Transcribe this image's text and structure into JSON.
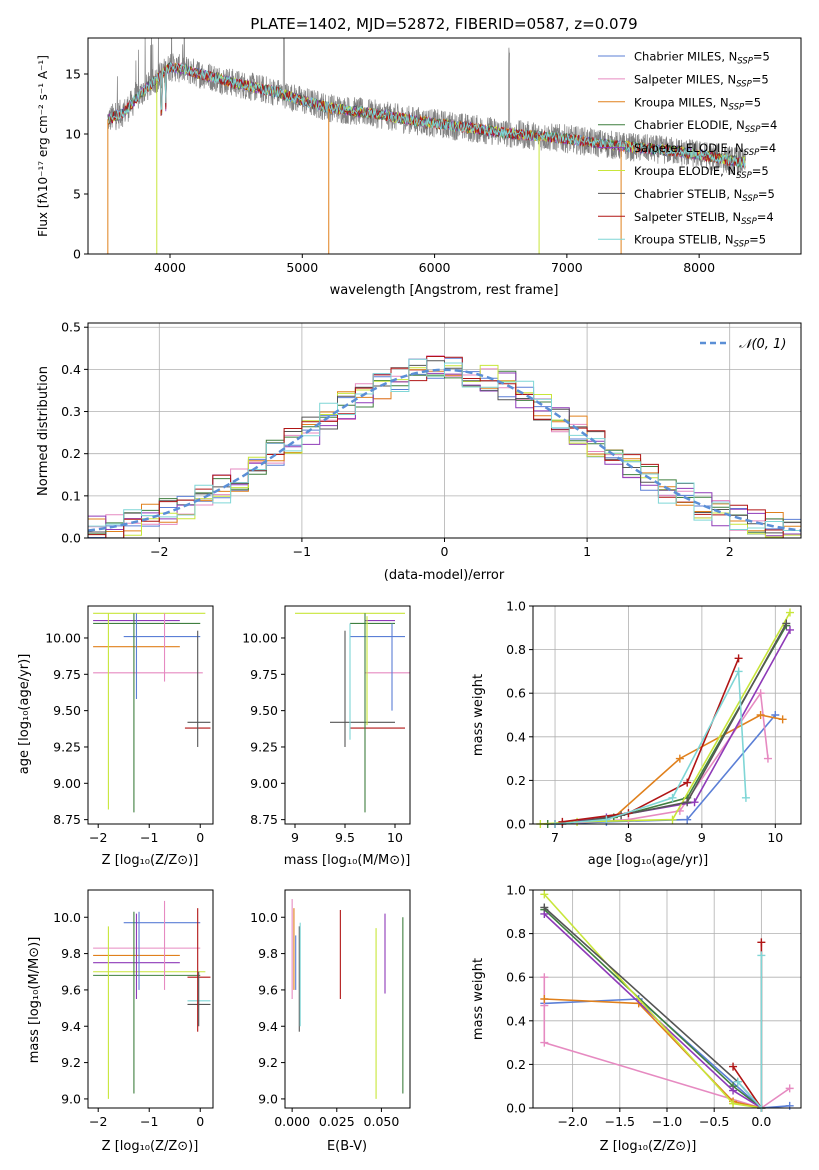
{
  "chart_data": [
    {
      "id": "spectrum",
      "type": "line",
      "title": "PLATE=1402, MJD=52872, FIBERID=0587, z=0.079",
      "xlabel": "wavelength [Angstrom, rest frame]",
      "ylabel": "Flux [fλ10⁻¹⁷ erg cm⁻² s⁻¹ A⁻¹]",
      "xlim": [
        3380,
        8770
      ],
      "ylim": [
        0,
        18
      ],
      "xticks": [
        4000,
        5000,
        6000,
        7000,
        8000
      ],
      "yticks": [
        0,
        5,
        10,
        15
      ],
      "legend_position": "upper-right",
      "spectrum_keypoints": {
        "x": [
          3530,
          3650,
          3800,
          3900,
          4000,
          4100,
          4300,
          4500,
          4800,
          5000,
          5200,
          5400,
          5600,
          5800,
          6000,
          6200,
          6400,
          6600,
          6800,
          7000,
          7200,
          7400,
          7600,
          7800,
          8000,
          8200,
          8350
        ],
        "y": [
          11.2,
          11.8,
          13.6,
          14.6,
          15.6,
          15.4,
          14.8,
          14.2,
          13.5,
          12.8,
          12.2,
          11.9,
          11.6,
          11.2,
          10.9,
          10.6,
          10.3,
          10.0,
          9.8,
          9.6,
          9.3,
          9.0,
          8.8,
          8.6,
          8.3,
          7.9,
          7.6
        ]
      },
      "series": [
        {
          "name": "Chabrier MILES, N",
          "sub": "SSP",
          "suffix": "=5",
          "color": "#5b7fd6"
        },
        {
          "name": "Salpeter MILES, N",
          "sub": "SSP",
          "suffix": "=5",
          "color": "#e68ac1"
        },
        {
          "name": "Kroupa MILES, N",
          "sub": "SSP",
          "suffix": "=5",
          "color": "#e0801c"
        },
        {
          "name": "Chabrier ELODIE, N",
          "sub": "SSP",
          "suffix": "=4",
          "color": "#3f7f3f"
        },
        {
          "name": "Salpeter ELODIE, N",
          "sub": "SSP",
          "suffix": "=4",
          "color": "#8e3ab8"
        },
        {
          "name": "Kroupa ELODIE, N",
          "sub": "SSP",
          "suffix": "=5",
          "color": "#c8e63a"
        },
        {
          "name": "Chabrier STELIB, N",
          "sub": "SSP",
          "suffix": "=5",
          "color": "#555555"
        },
        {
          "name": "Salpeter STELIB, N",
          "sub": "SSP",
          "suffix": "=4",
          "color": "#b01515"
        },
        {
          "name": "Kroupa STELIB, N",
          "sub": "SSP",
          "suffix": "=5",
          "color": "#7fd6d6"
        }
      ]
    },
    {
      "id": "residuals",
      "type": "histogram",
      "xlabel": "(data-model)/error",
      "ylabel": "Normed distribution",
      "xlim": [
        -2.5,
        2.5
      ],
      "ylim": [
        0,
        0.51
      ],
      "xticks": [
        -2,
        -1,
        0,
        1,
        2
      ],
      "yticks": [
        0.0,
        0.1,
        0.2,
        0.3,
        0.4,
        0.5
      ],
      "grid": true,
      "bin_width": 0.125,
      "reference": {
        "label": "𝒩(0, 1)",
        "mean": 0,
        "sigma": 1,
        "color": "#5b8fd6"
      },
      "legend_position": "upper-right"
    },
    {
      "id": "age-vs-Z",
      "type": "errorbar",
      "xlabel": "Z [log₁₀(Z/Z⊙)]",
      "ylabel": "age  [log₁₀(age/yr)]",
      "xlim": [
        -2.2,
        0.25
      ],
      "ylim": [
        8.72,
        10.22
      ],
      "xticks": [
        -2,
        -1,
        0
      ],
      "yticks": [
        8.75,
        9.0,
        9.25,
        9.5,
        9.75,
        10.0
      ],
      "hlines": [
        {
          "y": 10.17,
          "x0": -2.1,
          "x1": 0.1,
          "color": "#c8e63a"
        },
        {
          "y": 10.12,
          "x0": -2.1,
          "x1": -0.4,
          "color": "#8e3ab8"
        },
        {
          "y": 10.1,
          "x0": -2.1,
          "x1": 0.0,
          "color": "#3f7f3f"
        },
        {
          "y": 10.01,
          "x0": -1.5,
          "x1": 0.0,
          "color": "#5b7fd6"
        },
        {
          "y": 9.94,
          "x0": -2.1,
          "x1": -0.4,
          "color": "#e0801c"
        },
        {
          "y": 9.76,
          "x0": -2.1,
          "x1": 0.05,
          "color": "#e68ac1"
        },
        {
          "y": 9.42,
          "x0": -0.25,
          "x1": 0.2,
          "color": "#555555"
        },
        {
          "y": 9.38,
          "x0": -0.3,
          "x1": 0.2,
          "color": "#b01515"
        }
      ],
      "vlines": [
        {
          "x": -1.8,
          "y0": 8.82,
          "y1": 10.17,
          "color": "#c8e63a"
        },
        {
          "x": -1.3,
          "y0": 8.8,
          "y1": 10.17,
          "color": "#3f7f3f"
        },
        {
          "x": -1.25,
          "y0": 9.58,
          "y1": 10.17,
          "color": "#5b7fd6"
        },
        {
          "x": -0.7,
          "y0": 9.7,
          "y1": 10.17,
          "color": "#e68ac1"
        },
        {
          "x": -0.05,
          "y0": 9.25,
          "y1": 10.05,
          "color": "#555555"
        }
      ]
    },
    {
      "id": "age-vs-mass",
      "type": "errorbar",
      "xlabel": "mass [log₁₀(M/M⊙)]",
      "ylabel": "",
      "xlim": [
        8.9,
        10.15
      ],
      "ylim": [
        8.72,
        10.22
      ],
      "xticks": [
        9.0,
        9.5,
        10.0
      ],
      "yticks": [
        8.75,
        9.0,
        9.25,
        9.5,
        9.75,
        10.0
      ],
      "hlines": [
        {
          "y": 10.17,
          "x0": 9.0,
          "x1": 10.1,
          "color": "#c8e63a"
        },
        {
          "y": 10.12,
          "x0": 9.7,
          "x1": 10.0,
          "color": "#8e3ab8"
        },
        {
          "y": 10.1,
          "x0": 9.55,
          "x1": 10.0,
          "color": "#3f7f3f"
        },
        {
          "y": 10.01,
          "x0": 9.55,
          "x1": 10.1,
          "color": "#5b7fd6"
        },
        {
          "y": 9.76,
          "x0": 9.7,
          "x1": 10.15,
          "color": "#e68ac1"
        },
        {
          "y": 9.42,
          "x0": 9.35,
          "x1": 10.0,
          "color": "#555555"
        },
        {
          "y": 9.38,
          "x0": 9.55,
          "x1": 10.1,
          "color": "#b01515"
        }
      ],
      "vlines": [
        {
          "x": 9.5,
          "y0": 9.25,
          "y1": 10.05,
          "color": "#555555"
        },
        {
          "x": 9.55,
          "y0": 9.3,
          "y1": 10.1,
          "color": "#7fd6d6"
        },
        {
          "x": 9.7,
          "y0": 8.8,
          "y1": 10.17,
          "color": "#3f7f3f"
        },
        {
          "x": 9.72,
          "y0": 9.4,
          "y1": 10.15,
          "color": "#c8e63a"
        },
        {
          "x": 9.97,
          "y0": 9.5,
          "y1": 10.1,
          "color": "#5b7fd6"
        }
      ]
    },
    {
      "id": "weight-vs-age",
      "type": "line",
      "xlabel": "age  [log₁₀(age/yr)]",
      "ylabel": "mass weight",
      "xlim": [
        6.7,
        10.35
      ],
      "ylim": [
        0,
        1.0
      ],
      "xticks": [
        7,
        8,
        9,
        10
      ],
      "yticks": [
        0.0,
        0.2,
        0.4,
        0.6,
        0.8,
        1.0
      ],
      "grid": true,
      "series": [
        {
          "color": "#5b7fd6",
          "x": [
            7.0,
            7.7,
            8.8,
            10.0
          ],
          "y": [
            0.0,
            0.01,
            0.02,
            0.5
          ]
        },
        {
          "color": "#e68ac1",
          "x": [
            7.0,
            8.0,
            8.7,
            9.8,
            9.9
          ],
          "y": [
            0.0,
            0.02,
            0.06,
            0.6,
            0.3
          ]
        },
        {
          "color": "#e0801c",
          "x": [
            7.0,
            7.8,
            8.7,
            9.8,
            10.1
          ],
          "y": [
            0.0,
            0.03,
            0.3,
            0.5,
            0.48
          ]
        },
        {
          "color": "#3f7f3f",
          "x": [
            6.9,
            7.8,
            8.8,
            10.15
          ],
          "y": [
            0.0,
            0.03,
            0.12,
            0.91
          ]
        },
        {
          "color": "#8e3ab8",
          "x": [
            7.0,
            7.7,
            8.9,
            10.2
          ],
          "y": [
            0.0,
            0.03,
            0.1,
            0.89
          ]
        },
        {
          "color": "#c8e63a",
          "x": [
            6.8,
            7.3,
            8.6,
            10.2
          ],
          "y": [
            0.0,
            0.01,
            0.02,
            0.97
          ]
        },
        {
          "color": "#555555",
          "x": [
            7.1,
            7.9,
            8.8,
            10.15
          ],
          "y": [
            0.0,
            0.04,
            0.1,
            0.92
          ]
        },
        {
          "color": "#b01515",
          "x": [
            7.1,
            8.0,
            8.8,
            9.5
          ],
          "y": [
            0.01,
            0.05,
            0.19,
            0.76
          ]
        },
        {
          "color": "#7fd6d6",
          "x": [
            7.0,
            7.7,
            8.6,
            9.5,
            9.6
          ],
          "y": [
            0.0,
            0.02,
            0.12,
            0.7,
            0.12
          ]
        }
      ]
    },
    {
      "id": "mass-vs-Z",
      "type": "errorbar",
      "xlabel": "Z [log₁₀(Z/Z⊙)]",
      "ylabel": "mass [log₁₀(M/M⊙)]",
      "xlim": [
        -2.2,
        0.25
      ],
      "ylim": [
        8.95,
        10.15
      ],
      "xticks": [
        -2,
        -1,
        0
      ],
      "yticks": [
        9.0,
        9.2,
        9.4,
        9.6,
        9.8,
        10.0
      ],
      "hlines": [
        {
          "y": 9.97,
          "x0": -1.5,
          "x1": 0.0,
          "color": "#5b7fd6"
        },
        {
          "y": 9.83,
          "x0": -2.1,
          "x1": 0.0,
          "color": "#e68ac1"
        },
        {
          "y": 9.79,
          "x0": -2.1,
          "x1": -0.4,
          "color": "#e0801c"
        },
        {
          "y": 9.75,
          "x0": -2.1,
          "x1": -0.4,
          "color": "#8e3ab8"
        },
        {
          "y": 9.7,
          "x0": -2.1,
          "x1": 0.1,
          "color": "#c8e63a"
        },
        {
          "y": 9.68,
          "x0": -2.1,
          "x1": 0.0,
          "color": "#3f7f3f"
        },
        {
          "y": 9.67,
          "x0": -0.25,
          "x1": 0.2,
          "color": "#b01515"
        },
        {
          "y": 9.54,
          "x0": -0.25,
          "x1": 0.2,
          "color": "#7fd6d6"
        },
        {
          "y": 9.52,
          "x0": -0.25,
          "x1": 0.2,
          "color": "#555555"
        }
      ],
      "vlines": [
        {
          "x": -1.8,
          "y0": 9.0,
          "y1": 9.95,
          "color": "#c8e63a"
        },
        {
          "x": -1.3,
          "y0": 9.03,
          "y1": 10.03,
          "color": "#3f7f3f"
        },
        {
          "x": -1.25,
          "y0": 9.55,
          "y1": 10.02,
          "color": "#8e3ab8"
        },
        {
          "x": -1.2,
          "y0": 9.6,
          "y1": 10.03,
          "color": "#5b7fd6"
        },
        {
          "x": -0.7,
          "y0": 9.6,
          "y1": 10.09,
          "color": "#e68ac1"
        },
        {
          "x": -0.05,
          "y0": 9.37,
          "y1": 10.05,
          "color": "#b01515"
        },
        {
          "x": -0.03,
          "y0": 9.4,
          "y1": 9.7,
          "color": "#555555"
        }
      ]
    },
    {
      "id": "mass-vs-EBV",
      "type": "errorbar",
      "xlabel": "E(B-V)",
      "ylabel": "",
      "xlim": [
        -0.004,
        0.066
      ],
      "ylim": [
        8.95,
        10.15
      ],
      "xticks": [
        0.0,
        0.025,
        0.05
      ],
      "xtick_labels": [
        "0.000",
        "0.025",
        "0.050"
      ],
      "yticks": [
        9.0,
        9.2,
        9.4,
        9.6,
        9.8,
        10.0
      ],
      "vlines": [
        {
          "x": 0.0,
          "y0": 9.55,
          "y1": 10.1,
          "color": "#e68ac1"
        },
        {
          "x": 0.001,
          "y0": 9.6,
          "y1": 10.05,
          "color": "#e0801c"
        },
        {
          "x": 0.002,
          "y0": 9.6,
          "y1": 9.9,
          "color": "#5b7fd6"
        },
        {
          "x": 0.004,
          "y0": 9.37,
          "y1": 9.95,
          "color": "#555555"
        },
        {
          "x": 0.0045,
          "y0": 9.4,
          "y1": 9.97,
          "color": "#7fd6d6"
        },
        {
          "x": 0.027,
          "y0": 9.55,
          "y1": 10.04,
          "color": "#b01515"
        },
        {
          "x": 0.047,
          "y0": 9.0,
          "y1": 9.94,
          "color": "#c8e63a"
        },
        {
          "x": 0.052,
          "y0": 9.58,
          "y1": 10.02,
          "color": "#8e3ab8"
        },
        {
          "x": 0.062,
          "y0": 9.03,
          "y1": 10.0,
          "color": "#3f7f3f"
        }
      ]
    },
    {
      "id": "weight-vs-Z",
      "type": "line",
      "xlabel": "Z [log₁₀(Z/Z⊙)]",
      "ylabel": "mass weight",
      "xlim": [
        -2.42,
        0.42
      ],
      "ylim": [
        0,
        1.0
      ],
      "xticks": [
        -2.0,
        -1.5,
        -1.0,
        -0.5,
        0.0
      ],
      "xtick_labels": [
        "−2.0",
        "−1.5",
        "−1.0",
        "−0.5",
        "0.0"
      ],
      "yticks": [
        0.0,
        0.2,
        0.4,
        0.6,
        0.8,
        1.0
      ],
      "grid": true,
      "series": [
        {
          "color": "#5b7fd6",
          "x": [
            -2.3,
            -1.3,
            0.0,
            0.3
          ],
          "y": [
            0.48,
            0.5,
            0.0,
            0.01
          ]
        },
        {
          "color": "#e68ac1",
          "x": [
            -2.3,
            -2.3,
            -2.3,
            0.0,
            0.3
          ],
          "y": [
            0.6,
            0.47,
            0.3,
            0.0,
            0.09
          ]
        },
        {
          "color": "#e0801c",
          "x": [
            -2.3,
            -1.3,
            -0.3,
            0.0
          ],
          "y": [
            0.5,
            0.48,
            0.03,
            0.0
          ]
        },
        {
          "color": "#3f7f3f",
          "x": [
            -2.3,
            -0.3,
            0.0
          ],
          "y": [
            0.91,
            0.1,
            0.0
          ]
        },
        {
          "color": "#8e3ab8",
          "x": [
            -2.3,
            -0.3,
            0.0
          ],
          "y": [
            0.89,
            0.08,
            0.0
          ]
        },
        {
          "color": "#c8e63a",
          "x": [
            -2.3,
            -0.3,
            0.0
          ],
          "y": [
            0.98,
            0.02,
            0.0
          ]
        },
        {
          "color": "#555555",
          "x": [
            -2.3,
            -0.25,
            0.0
          ],
          "y": [
            0.92,
            0.12,
            0.0
          ]
        },
        {
          "color": "#b01515",
          "x": [
            -0.3,
            0.0,
            0.0
          ],
          "y": [
            0.19,
            0.0,
            0.76
          ]
        },
        {
          "color": "#7fd6d6",
          "x": [
            -0.25,
            0.0,
            0.0
          ],
          "y": [
            0.12,
            0.0,
            0.7
          ]
        }
      ]
    }
  ]
}
